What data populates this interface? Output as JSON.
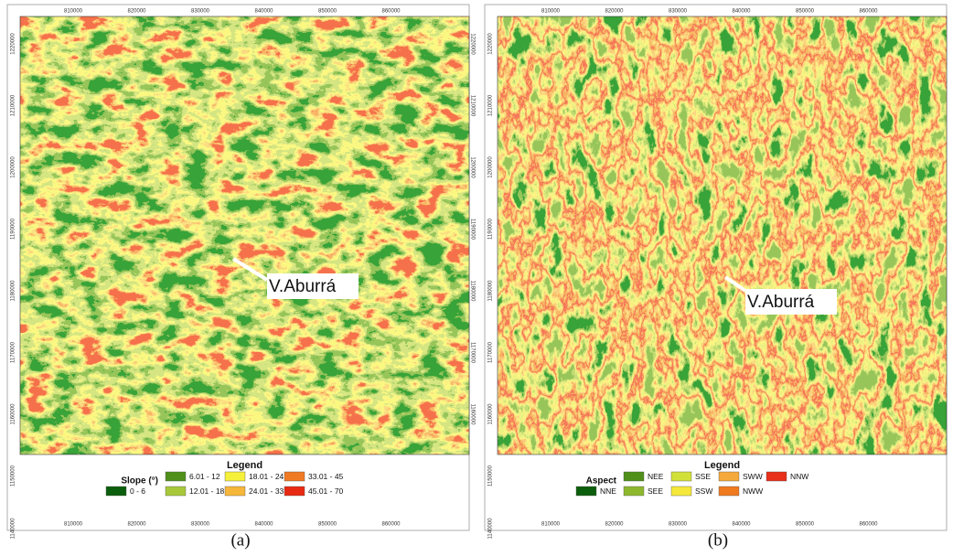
{
  "x_ticks": [
    810000,
    820000,
    830000,
    840000,
    850000,
    860000
  ],
  "y_ticks": [
    1220000,
    1210000,
    1200000,
    1190000,
    1180000,
    1170000,
    1160000,
    1150000,
    1140000
  ],
  "panels": [
    {
      "caption": "(a)",
      "annotation": "V.Aburrá",
      "legend": {
        "title": "Legend",
        "heading": "Slope (°)",
        "items": [
          {
            "label": "0 - 6",
            "color": "#0b5e0b"
          },
          {
            "label": "6.01 - 12",
            "color": "#4f8f1a"
          },
          {
            "label": "12.01 - 18",
            "color": "#a8c83a"
          },
          {
            "label": "18.01 - 24",
            "color": "#f5f03a"
          },
          {
            "label": "24.01 - 33",
            "color": "#f5b63a"
          },
          {
            "label": "33.01 - 45",
            "color": "#f07a23"
          },
          {
            "label": "45.01 - 70",
            "color": "#e82a12"
          }
        ]
      }
    },
    {
      "caption": "(b)",
      "annotation": "V.Aburrá",
      "legend": {
        "title": "Legend",
        "heading": "Aspect",
        "items": [
          {
            "label": "NNE",
            "color": "#0b5e0b"
          },
          {
            "label": "NEE",
            "color": "#4f8f1a"
          },
          {
            "label": "SEE",
            "color": "#8db82e"
          },
          {
            "label": "SSE",
            "color": "#d2e03a"
          },
          {
            "label": "SSW",
            "color": "#f5e83a"
          },
          {
            "label": "SWW",
            "color": "#f5a93a"
          },
          {
            "label": "NWW",
            "color": "#ef7a1f"
          },
          {
            "label": "NNW",
            "color": "#e8301a"
          }
        ]
      }
    }
  ]
}
